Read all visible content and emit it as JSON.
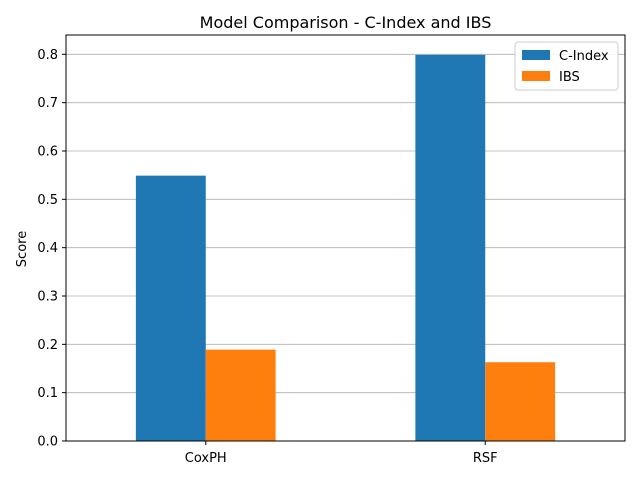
{
  "chart_data": {
    "type": "bar",
    "title": "Model Comparison - C-Index and IBS",
    "xlabel": "",
    "ylabel": "Score",
    "categories": [
      "CoxPH",
      "RSF"
    ],
    "series": [
      {
        "name": "C-Index",
        "values": [
          0.549,
          0.799
        ],
        "color": "#1f77b4"
      },
      {
        "name": "IBS",
        "values": [
          0.189,
          0.163
        ],
        "color": "#ff7f0e"
      }
    ],
    "ylim": [
      0,
      0.84
    ],
    "yticks": [
      0.0,
      0.1,
      0.2,
      0.3,
      0.4,
      0.5,
      0.6,
      0.7,
      0.8
    ],
    "ytick_labels": [
      "0.0",
      "0.1",
      "0.2",
      "0.3",
      "0.4",
      "0.5",
      "0.6",
      "0.7",
      "0.8"
    ],
    "grid": "y",
    "legend": "top-right"
  }
}
